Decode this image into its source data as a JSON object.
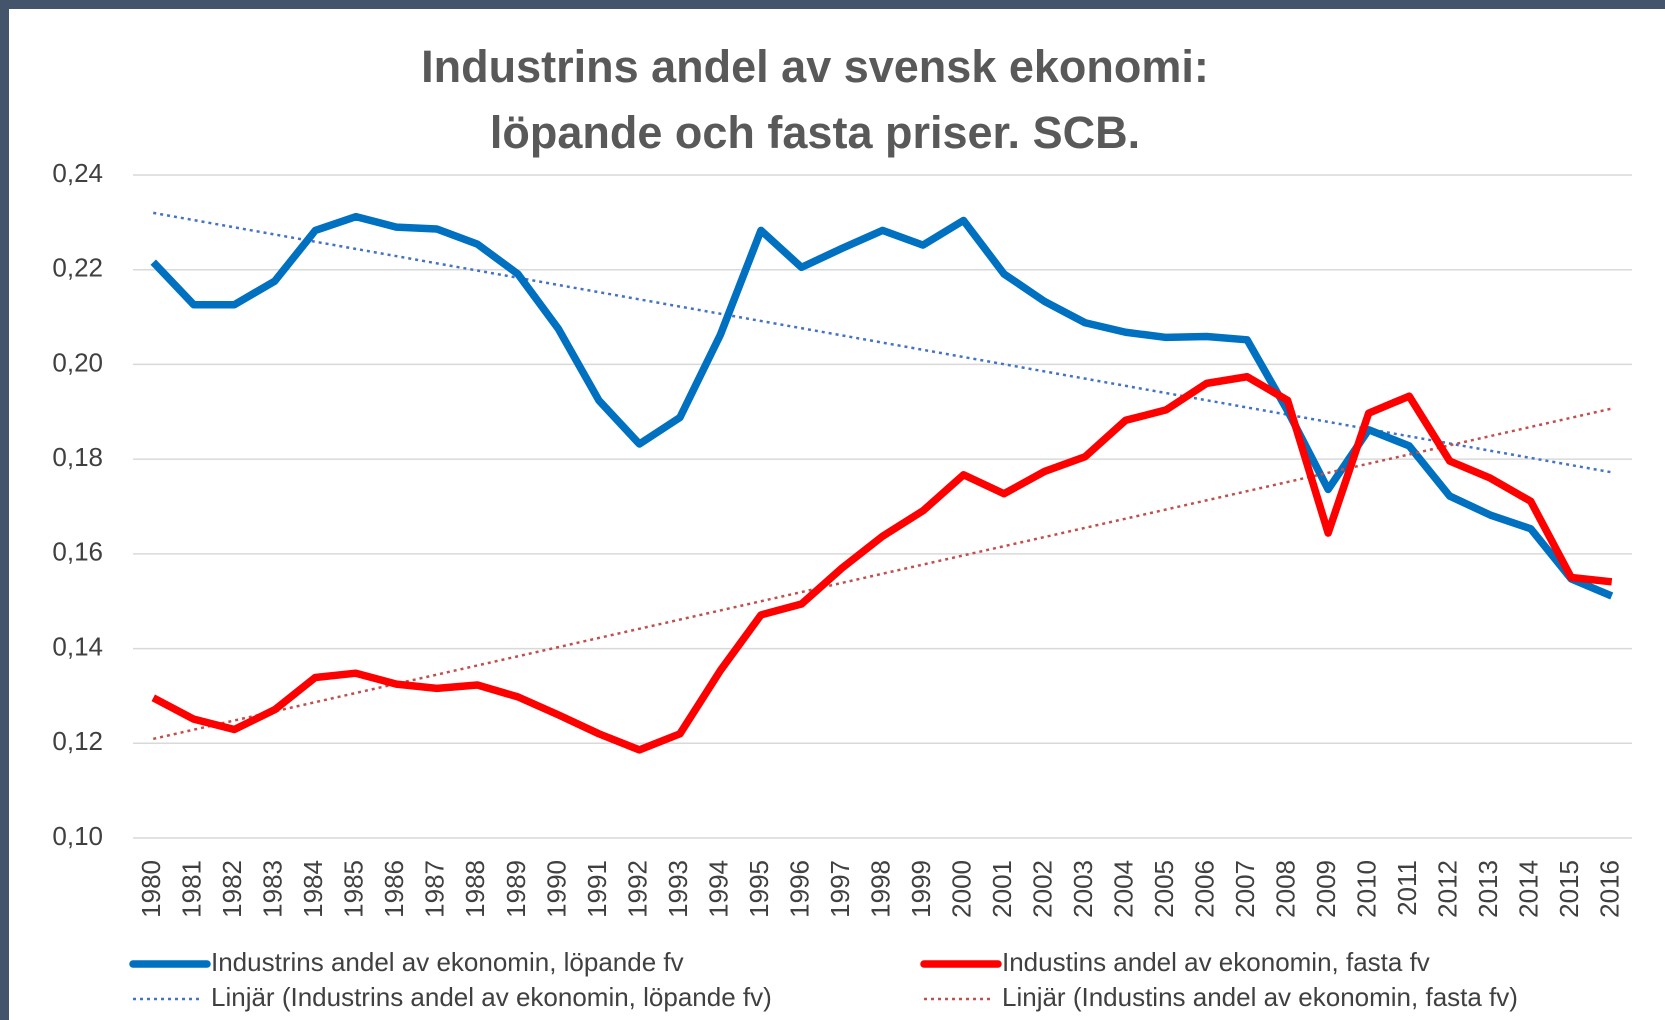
{
  "chart_data": {
    "type": "line",
    "title": [
      "Industrins andel av svensk ekonomi:",
      "löpande och fasta priser. SCB."
    ],
    "categories": [
      "1980",
      "1981",
      "1982",
      "1983",
      "1984",
      "1985",
      "1986",
      "1987",
      "1988",
      "1989",
      "1990",
      "1991",
      "1992",
      "1993",
      "1994",
      "1995",
      "1996",
      "1997",
      "1998",
      "1999",
      "2000",
      "2001",
      "2002",
      "2003",
      "2004",
      "2005",
      "2006",
      "2007",
      "2008",
      "2009",
      "2010",
      "2011",
      "2012",
      "2013",
      "2014",
      "2015",
      "2016"
    ],
    "series": [
      {
        "name": "Industrins andel av ekonomin, löpande fv",
        "color": "#0070c0",
        "values": [
          0.2216,
          0.2126,
          0.2126,
          0.2176,
          0.2283,
          0.2312,
          0.229,
          0.2286,
          0.2254,
          0.2191,
          0.2075,
          0.1924,
          0.1832,
          0.1888,
          0.2063,
          0.2283,
          0.2205,
          0.2245,
          0.2283,
          0.2252,
          0.2304,
          0.2191,
          0.2133,
          0.2088,
          0.2068,
          0.2057,
          0.2059,
          0.2052,
          0.1902,
          0.1736,
          0.1862,
          0.1828,
          0.1722,
          0.1682,
          0.1653,
          0.1547,
          0.1511
        ],
        "trendline": {
          "name": "Linjär (Industrins andel av ekonomin, löpande fv)",
          "color": "#4472c4"
        }
      },
      {
        "name": "Industins andel av ekonomin, fasta fv",
        "color": "#ff0000",
        "values": [
          0.1296,
          0.1251,
          0.1229,
          0.1271,
          0.1339,
          0.1348,
          0.1325,
          0.1316,
          0.1323,
          0.1298,
          0.126,
          0.122,
          0.1186,
          0.122,
          0.1354,
          0.1471,
          0.1494,
          0.157,
          0.1637,
          0.1691,
          0.1767,
          0.1727,
          0.1774,
          0.1805,
          0.1882,
          0.1904,
          0.196,
          0.1974,
          0.1924,
          0.1644,
          0.1897,
          0.1933,
          0.1796,
          0.176,
          0.1711,
          0.155,
          0.1541
        ],
        "trendline": {
          "name": "Linjär (Industins andel av ekonomin, fasta fv)",
          "color": "#c0504d"
        }
      }
    ],
    "ylim": [
      0.1,
      0.24
    ],
    "yticks": [
      {
        "value": 0.1,
        "label": "0,10"
      },
      {
        "value": 0.12,
        "label": "0,12"
      },
      {
        "value": 0.14,
        "label": "0,14"
      },
      {
        "value": 0.16,
        "label": "0,16"
      },
      {
        "value": 0.18,
        "label": "0,18"
      },
      {
        "value": 0.2,
        "label": "0,20"
      },
      {
        "value": 0.22,
        "label": "0,22"
      },
      {
        "value": 0.24,
        "label": "0,24"
      }
    ],
    "grid": true,
    "legend": "bottom"
  }
}
